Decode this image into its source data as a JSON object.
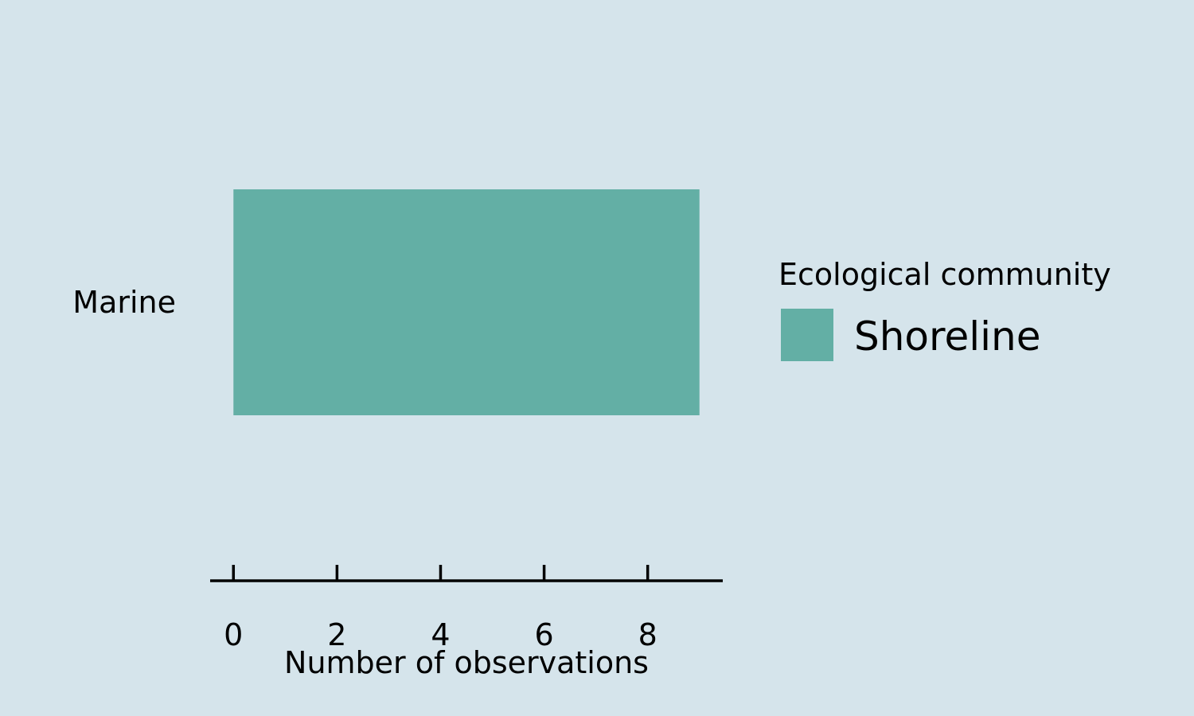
{
  "chart_data": {
    "type": "bar",
    "orientation": "horizontal",
    "categories": [
      "Marine"
    ],
    "series": [
      {
        "name": "Shoreline",
        "values": [
          9
        ],
        "color": "#63afa5"
      }
    ],
    "xlabel": "Number of observations",
    "ylabel": "",
    "xlim": [
      -0.45,
      9.45
    ],
    "xticks": [
      0,
      2,
      4,
      6,
      8
    ],
    "grid": false,
    "legend": {
      "title": "Ecological community",
      "placement": "right"
    },
    "background": "#d5e4eb"
  }
}
